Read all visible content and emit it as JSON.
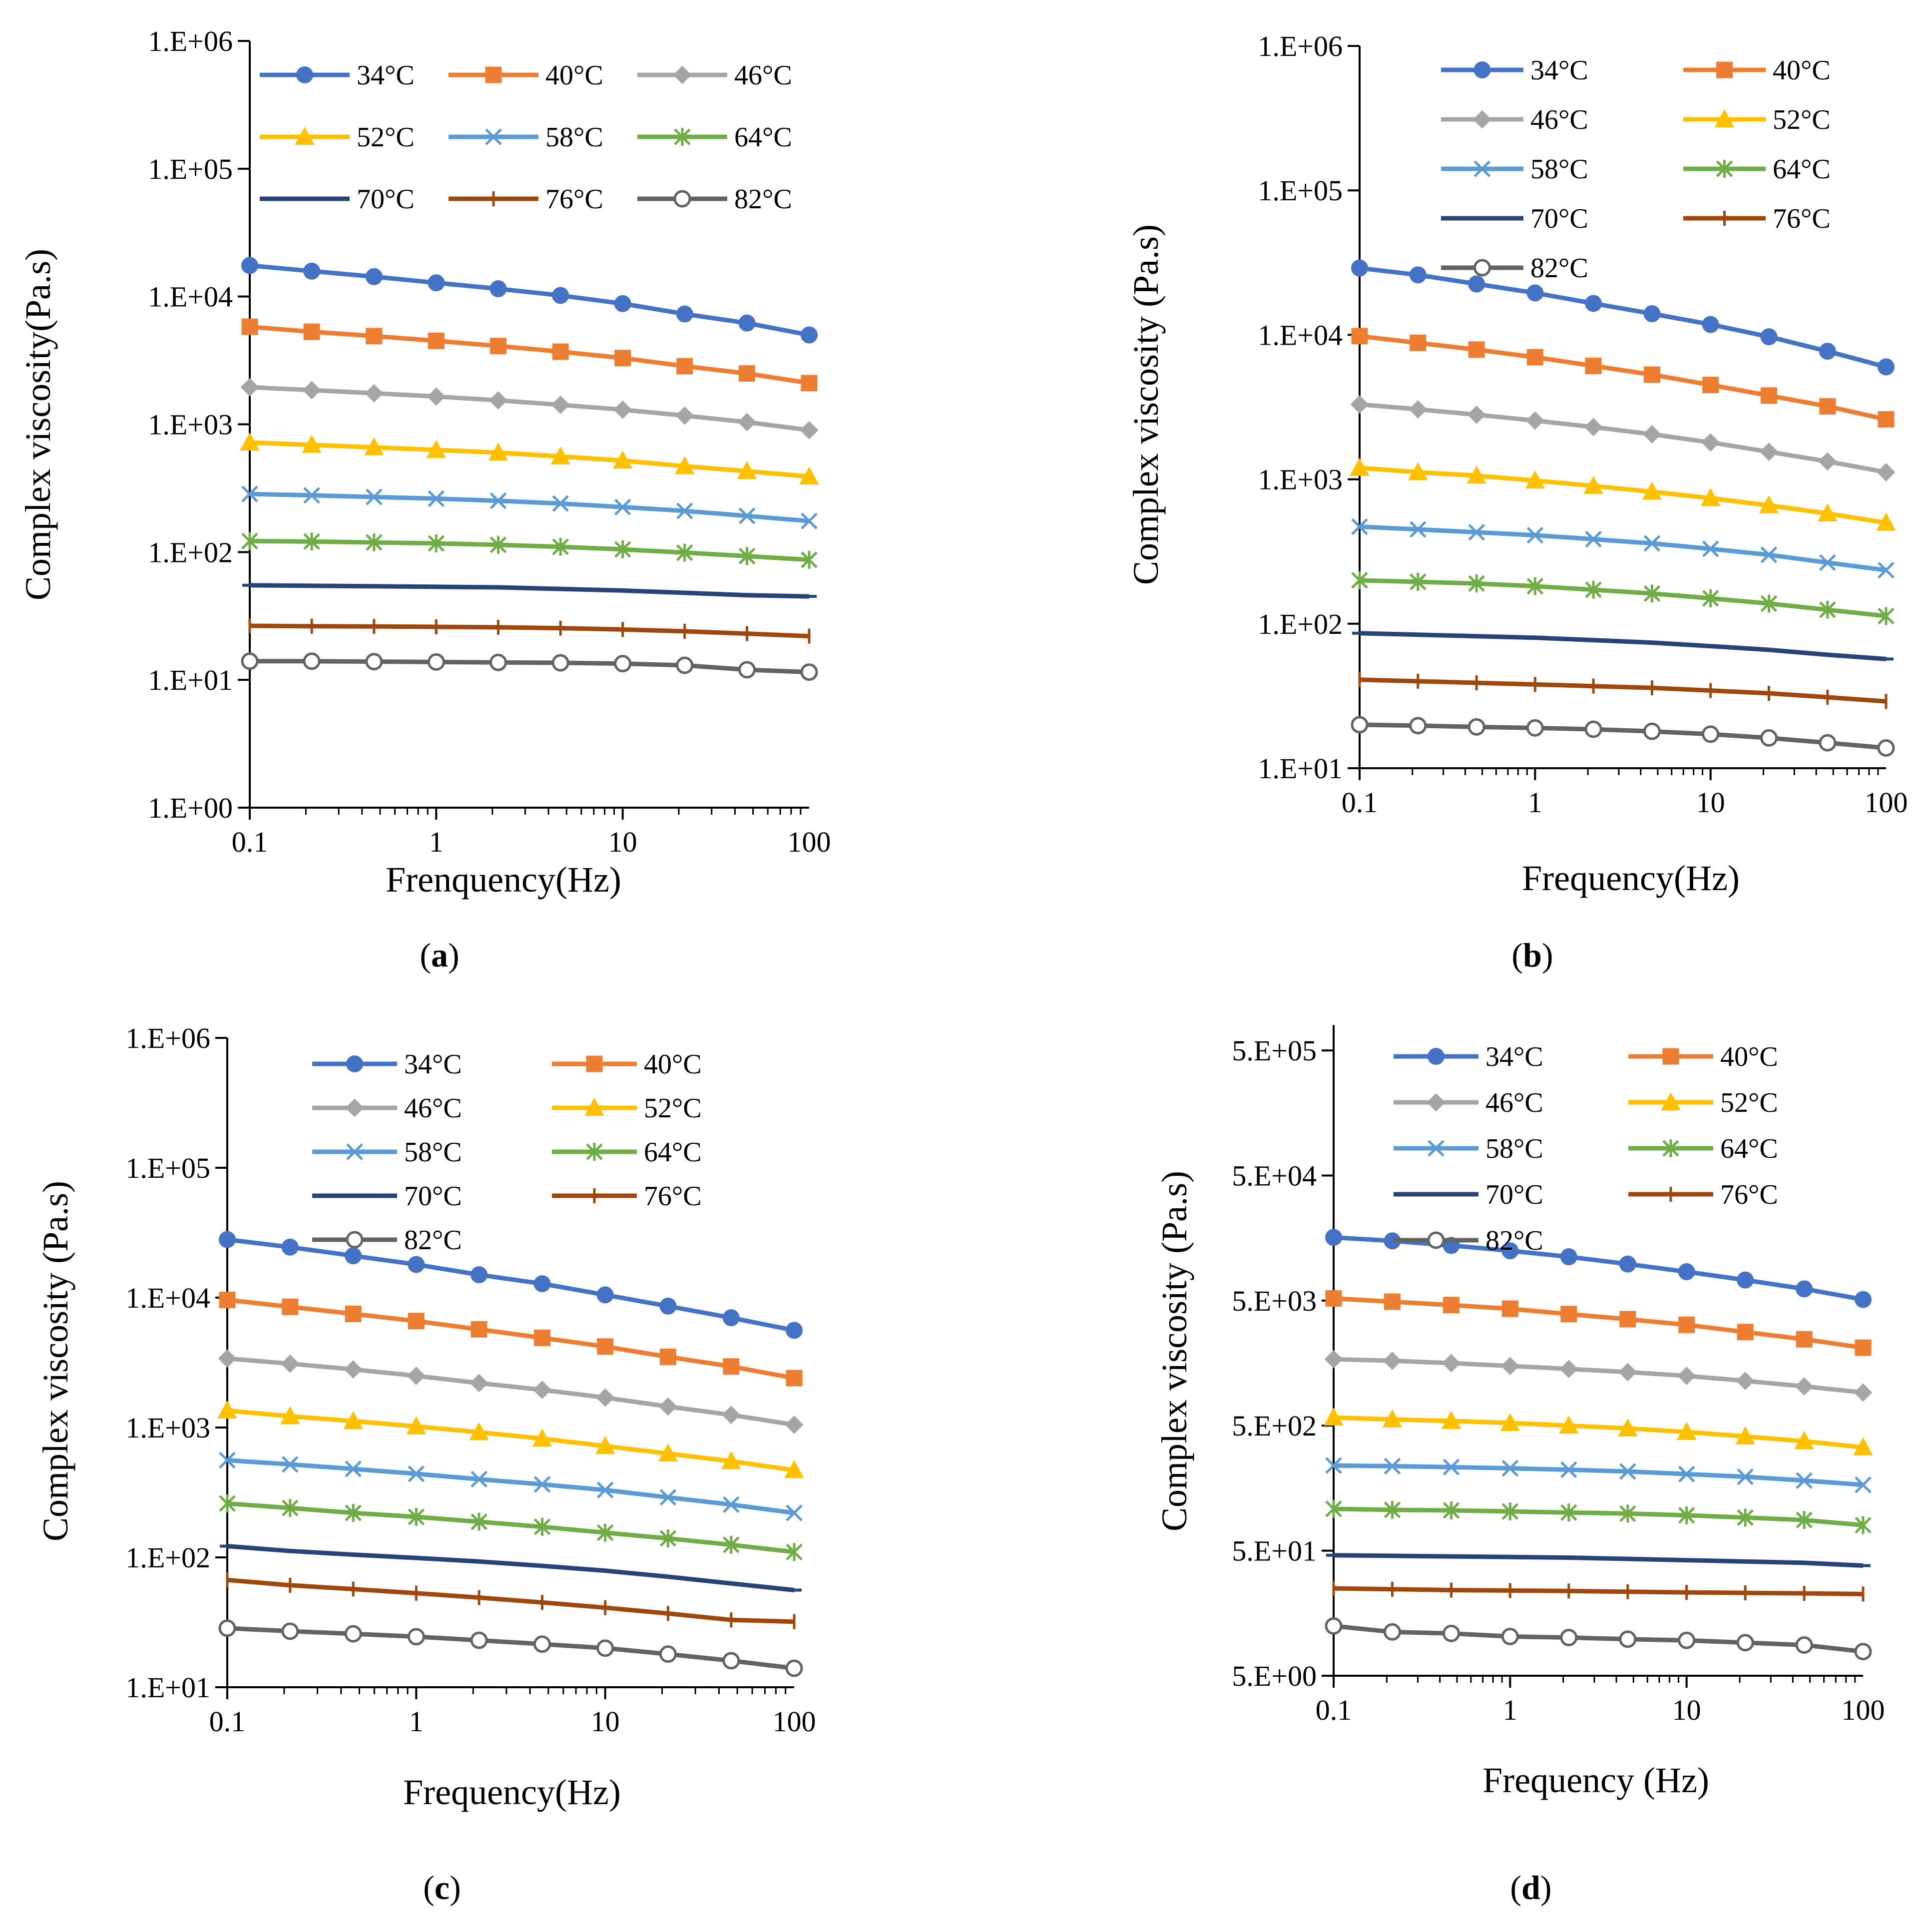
{
  "series_colors": {
    "34°C": "#4472C4",
    "40°C": "#ED7D31",
    "46°C": "#A5A5A5",
    "52°C": "#FFC000",
    "58°C": "#5B9BD5",
    "64°C": "#70AD47",
    "70°C": "#264478",
    "76°C": "#9E480E",
    "82°C": "#636363"
  },
  "series_markers": {
    "34°C": "circle",
    "40°C": "square",
    "46°C": "diamond",
    "52°C": "triangle",
    "58°C": "x",
    "64°C": "star",
    "70°C": "dash",
    "76°C": "plus",
    "82°C": "open-circle"
  },
  "chart_data": [
    {
      "type": "line",
      "caption": {
        "open": "(",
        "letter": "a",
        "close": ")"
      },
      "xscale": "log",
      "yscale": "log",
      "xlabel": "Frenquency(Hz)",
      "ylabel": "Complex viscosity(Pa.s)",
      "xlim": [
        0.1,
        100
      ],
      "ylim": [
        1,
        1000000
      ],
      "xtick_values": [
        0.1,
        1,
        10,
        100
      ],
      "xtick_labels": [
        "0.1",
        "1",
        "10",
        "100"
      ],
      "ytick_values": [
        1,
        10,
        100,
        1000,
        10000,
        100000,
        1000000
      ],
      "ytick_labels": [
        "1.E+00",
        "1.E+01",
        "1.E+02",
        "1.E+03",
        "1.E+04",
        "1.E+05",
        "1.E+06"
      ],
      "legend": {
        "columns": 3,
        "position": "top"
      },
      "x": [
        0.1,
        0.215,
        0.464,
        1,
        2.15,
        4.64,
        10,
        21.5,
        46.4,
        100
      ],
      "series": [
        {
          "name": "34°C",
          "values": [
            17500,
            15800,
            14300,
            12800,
            11500,
            10200,
            8800,
            7300,
            6200,
            5000
          ]
        },
        {
          "name": "40°C",
          "values": [
            5800,
            5300,
            4900,
            4500,
            4100,
            3700,
            3300,
            2850,
            2500,
            2100
          ]
        },
        {
          "name": "46°C",
          "values": [
            1950,
            1850,
            1750,
            1650,
            1540,
            1420,
            1300,
            1170,
            1040,
            900
          ]
        },
        {
          "name": "52°C",
          "values": [
            720,
            690,
            660,
            630,
            600,
            560,
            520,
            470,
            430,
            390
          ]
        },
        {
          "name": "58°C",
          "values": [
            285,
            278,
            270,
            262,
            252,
            240,
            225,
            210,
            192,
            175
          ]
        },
        {
          "name": "64°C",
          "values": [
            122,
            121,
            119,
            117,
            114,
            110,
            105,
            99,
            93,
            87
          ]
        },
        {
          "name": "70°C",
          "values": [
            55,
            54.5,
            54,
            53.5,
            53,
            51.5,
            50,
            48,
            46,
            45
          ]
        },
        {
          "name": "76°C",
          "values": [
            26.5,
            26.3,
            26.2,
            26,
            25.8,
            25.4,
            24.8,
            24,
            23,
            22
          ]
        },
        {
          "name": "82°C",
          "values": [
            14,
            14,
            13.9,
            13.8,
            13.7,
            13.6,
            13.4,
            13,
            12,
            11.5
          ]
        }
      ]
    },
    {
      "type": "line",
      "caption": {
        "open": "(",
        "letter": "b",
        "close": ")"
      },
      "xscale": "log",
      "yscale": "log",
      "xlabel": "Frequency(Hz)",
      "ylabel": "Complex  viscosity (Pa.s)",
      "xlim": [
        0.1,
        100
      ],
      "ylim": [
        10,
        1000000
      ],
      "xtick_values": [
        0.1,
        1,
        10,
        100
      ],
      "xtick_labels": [
        "0.1",
        "1",
        "10",
        "100"
      ],
      "ytick_values": [
        10,
        100,
        1000,
        10000,
        100000,
        1000000
      ],
      "ytick_labels": [
        "1.E+01",
        "1.E+02",
        "1.E+03",
        "1.E+04",
        "1.E+05",
        "1.E+06"
      ],
      "legend": {
        "columns": 2,
        "position": "top"
      },
      "x": [
        0.1,
        0.215,
        0.464,
        1,
        2.15,
        4.64,
        10,
        21.5,
        46.4,
        100
      ],
      "series": [
        {
          "name": "34°C",
          "values": [
            29000,
            26000,
            22500,
            19500,
            16500,
            14000,
            11800,
            9700,
            7700,
            6000
          ]
        },
        {
          "name": "40°C",
          "values": [
            9800,
            8800,
            7900,
            7000,
            6100,
            5300,
            4500,
            3800,
            3200,
            2600
          ]
        },
        {
          "name": "46°C",
          "values": [
            3300,
            3050,
            2800,
            2550,
            2300,
            2050,
            1800,
            1550,
            1330,
            1120
          ]
        },
        {
          "name": "52°C",
          "values": [
            1200,
            1120,
            1060,
            980,
            900,
            820,
            740,
            660,
            580,
            500
          ]
        },
        {
          "name": "58°C",
          "values": [
            470,
            450,
            430,
            410,
            385,
            360,
            330,
            300,
            265,
            235
          ]
        },
        {
          "name": "64°C",
          "values": [
            200,
            195,
            190,
            182,
            172,
            162,
            150,
            138,
            125,
            113
          ]
        },
        {
          "name": "70°C",
          "values": [
            86,
            84,
            82,
            80,
            77,
            74,
            70,
            66,
            61,
            57
          ]
        },
        {
          "name": "76°C",
          "values": [
            41,
            40,
            39,
            38,
            37,
            36,
            34.5,
            33,
            31,
            29
          ]
        },
        {
          "name": "82°C",
          "values": [
            20,
            19.7,
            19.3,
            19,
            18.6,
            18,
            17.2,
            16.2,
            15,
            13.8
          ]
        }
      ]
    },
    {
      "type": "line",
      "caption": {
        "open": "(",
        "letter": "c",
        "close": ")"
      },
      "xscale": "log",
      "yscale": "log",
      "xlabel": "Frequency(Hz)",
      "ylabel": "Complex  viscosity (Pa.s)",
      "xlim": [
        0.1,
        100
      ],
      "ylim": [
        10,
        1000000
      ],
      "xtick_values": [
        0.1,
        1,
        10,
        100
      ],
      "xtick_labels": [
        "0.1",
        "1",
        "10",
        "100"
      ],
      "ytick_values": [
        10,
        100,
        1000,
        10000,
        100000,
        1000000
      ],
      "ytick_labels": [
        "1.E+01",
        "1.E+02",
        "1.E+03",
        "1.E+04",
        "1.E+05",
        "1.E+06"
      ],
      "legend": {
        "columns": 2,
        "position": "top"
      },
      "x": [
        0.1,
        0.215,
        0.464,
        1,
        2.15,
        4.64,
        10,
        21.5,
        46.4,
        100
      ],
      "series": [
        {
          "name": "34°C",
          "values": [
            28000,
            24500,
            21000,
            18000,
            15000,
            12800,
            10500,
            8600,
            7000,
            5600
          ]
        },
        {
          "name": "40°C",
          "values": [
            9600,
            8500,
            7500,
            6600,
            5700,
            4900,
            4200,
            3500,
            2950,
            2400
          ]
        },
        {
          "name": "46°C",
          "values": [
            3400,
            3100,
            2800,
            2500,
            2200,
            1950,
            1700,
            1450,
            1250,
            1050
          ]
        },
        {
          "name": "52°C",
          "values": [
            1350,
            1220,
            1120,
            1020,
            920,
            820,
            720,
            630,
            550,
            470
          ]
        },
        {
          "name": "58°C",
          "values": [
            560,
            520,
            480,
            440,
            400,
            365,
            330,
            290,
            255,
            220
          ]
        },
        {
          "name": "64°C",
          "values": [
            260,
            240,
            220,
            205,
            188,
            172,
            155,
            140,
            125,
            110
          ]
        },
        {
          "name": "70°C",
          "values": [
            122,
            112,
            105,
            99,
            93,
            86,
            79,
            71,
            63,
            56
          ]
        },
        {
          "name": "76°C",
          "values": [
            67,
            61,
            57,
            53,
            49,
            45,
            41,
            37,
            33,
            32
          ]
        },
        {
          "name": "82°C",
          "values": [
            28.5,
            27,
            25.8,
            24.5,
            23,
            21.5,
            20,
            18,
            16,
            14
          ]
        }
      ]
    },
    {
      "type": "line",
      "caption": {
        "open": "(",
        "letter": "d",
        "close": ")"
      },
      "xscale": "log",
      "yscale": "log",
      "xlabel": "Frequency (Hz)",
      "ylabel": "Complex viscosity (Pa.s)",
      "xlim": [
        0.1,
        100
      ],
      "ylim": [
        5,
        800000
      ],
      "xtick_values": [
        0.1,
        1,
        10,
        100
      ],
      "xtick_labels": [
        "0.1",
        "1",
        "10",
        "100"
      ],
      "ytick_values": [
        5,
        50,
        500,
        5000,
        50000,
        500000
      ],
      "ytick_labels": [
        "5.E+00",
        "5.E+01",
        "5.E+02",
        "5.E+03",
        "5.E+04",
        "5.E+05"
      ],
      "legend": {
        "columns": 2,
        "position": "top"
      },
      "x": [
        0.1,
        0.215,
        0.464,
        1,
        2.15,
        4.64,
        10,
        21.5,
        46.4,
        100
      ],
      "series": [
        {
          "name": "34°C",
          "values": [
            16000,
            15000,
            13800,
            12500,
            11200,
            9800,
            8500,
            7300,
            6200,
            5100
          ]
        },
        {
          "name": "40°C",
          "values": [
            5200,
            4900,
            4600,
            4300,
            3900,
            3550,
            3200,
            2800,
            2450,
            2100
          ]
        },
        {
          "name": "46°C",
          "values": [
            1700,
            1650,
            1580,
            1500,
            1420,
            1340,
            1250,
            1140,
            1030,
            920
          ]
        },
        {
          "name": "52°C",
          "values": [
            580,
            560,
            545,
            525,
            500,
            475,
            445,
            410,
            375,
            335
          ]
        },
        {
          "name": "58°C",
          "values": [
            240,
            237,
            233,
            228,
            222,
            215,
            205,
            195,
            182,
            168
          ]
        },
        {
          "name": "64°C",
          "values": [
            108,
            106,
            105,
            103,
            101,
            99,
            96,
            92,
            88,
            80
          ]
        },
        {
          "name": "70°C",
          "values": [
            46,
            45.5,
            45,
            44.5,
            44,
            43,
            42,
            41,
            40,
            38
          ]
        },
        {
          "name": "76°C",
          "values": [
            25,
            24.6,
            24.2,
            24,
            23.8,
            23.5,
            23.2,
            23,
            22.8,
            22.5
          ]
        },
        {
          "name": "82°C",
          "values": [
            12.5,
            11.2,
            10.9,
            10.3,
            10.1,
            9.8,
            9.6,
            9.2,
            8.8,
            7.8
          ]
        }
      ]
    }
  ]
}
